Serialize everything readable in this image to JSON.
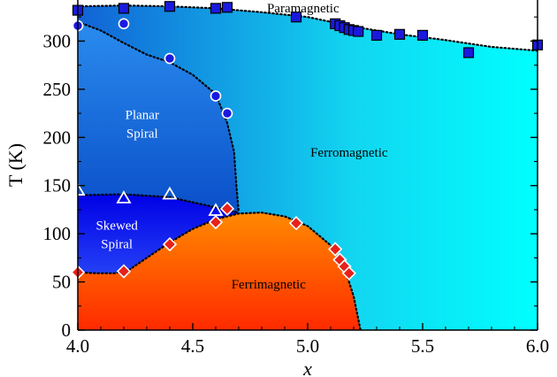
{
  "chart_data": {
    "type": "scatter",
    "xlabel": "x",
    "ylabel": "T (K)",
    "xlim": [
      4.0,
      6.0
    ],
    "ylim": [
      0,
      350
    ],
    "x_ticks": [
      "4.0",
      "4.5",
      "5.0",
      "5.5",
      "6.0"
    ],
    "y_ticks": [
      "0",
      "50",
      "100",
      "150",
      "200",
      "250",
      "300",
      "350"
    ],
    "regions": [
      {
        "name": "Paramagnetic",
        "label": "Paramagnetic",
        "color": "#ffffff",
        "text_color": "#000000"
      },
      {
        "name": "Ferromagnetic",
        "label": "Ferromagnetic",
        "color": "#12d6f0",
        "text_color": "#000000"
      },
      {
        "name": "Planar Spiral",
        "label": [
          "Planar",
          "Spiral"
        ],
        "color": "#1f6fe0",
        "text_color": "#ffffff"
      },
      {
        "name": "Skewed Spiral",
        "label": [
          "Skewed",
          "Spiral"
        ],
        "color": "#1010f0",
        "text_color": "#ffffff"
      },
      {
        "name": "Ferrimagnetic",
        "label": "Ferrimagnetic",
        "color": "#ff6a00",
        "text_color": "#000000"
      }
    ],
    "series": [
      {
        "marker": "square",
        "color": "#1a1adf",
        "x": [
          4.0,
          4.2,
          4.4,
          4.6,
          4.65,
          4.95,
          5.12,
          5.14,
          5.16,
          5.18,
          5.2,
          5.22,
          5.3,
          5.4,
          5.5,
          5.7,
          6.0
        ],
        "y": [
          332,
          334,
          336,
          334,
          335,
          325,
          318,
          316,
          314,
          312,
          311,
          310,
          306,
          307,
          306,
          288,
          296
        ]
      },
      {
        "marker": "circle",
        "color": "#1a1adf",
        "x": [
          4.0,
          4.2,
          4.4,
          4.6,
          4.65
        ],
        "y": [
          316,
          318,
          282,
          243,
          225
        ]
      },
      {
        "marker": "triangle",
        "color": "none",
        "x": [
          4.0,
          4.2,
          4.4,
          4.6
        ],
        "y": [
          145,
          137,
          141,
          124
        ]
      },
      {
        "marker": "diamond",
        "color": "#e8201a",
        "x": [
          4.0,
          4.2,
          4.4,
          4.6,
          4.65,
          4.95,
          5.12,
          5.14,
          5.16,
          5.18
        ],
        "y": [
          60,
          61,
          89,
          112,
          126,
          111,
          84,
          73,
          66,
          59
        ]
      }
    ],
    "boundaries": [
      {
        "x": [
          4.0,
          4.2,
          4.4,
          4.6,
          4.8,
          5.0,
          5.2,
          5.4,
          5.6,
          5.8,
          6.0
        ],
        "y": [
          336,
          337,
          336,
          334,
          330,
          325,
          315,
          307,
          301,
          294,
          290
        ]
      },
      {
        "x": [
          4.0,
          4.1,
          4.2,
          4.3,
          4.4,
          4.5,
          4.6,
          4.65,
          4.68,
          4.69,
          4.7
        ],
        "y": [
          320,
          311,
          298,
          286,
          278,
          265,
          245,
          215,
          185,
          150,
          122
        ]
      },
      {
        "x": [
          4.0,
          4.2,
          4.4,
          4.55,
          4.7
        ],
        "y": [
          140,
          141,
          138,
          130,
          122
        ]
      },
      {
        "x": [
          4.0,
          4.08,
          4.16,
          4.22,
          4.3,
          4.4,
          4.5,
          4.6,
          4.7,
          4.8,
          4.9,
          5.0,
          5.1,
          5.16,
          5.2,
          5.23
        ],
        "y": [
          60,
          59,
          59,
          62,
          75,
          91,
          105,
          115,
          121,
          122,
          118,
          108,
          88,
          65,
          35,
          0
        ]
      }
    ]
  }
}
